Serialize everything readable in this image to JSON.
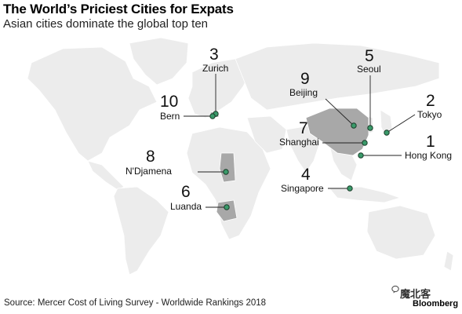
{
  "header": {
    "title": "The World’s Priciest Cities for Expats",
    "subtitle": "Asian cities dominate the global top ten"
  },
  "cities": [
    {
      "rank": "1",
      "name": "Hong Kong"
    },
    {
      "rank": "2",
      "name": "Tokyo"
    },
    {
      "rank": "3",
      "name": "Zurich"
    },
    {
      "rank": "4",
      "name": "Singapore"
    },
    {
      "rank": "5",
      "name": "Seoul"
    },
    {
      "rank": "6",
      "name": "Luanda"
    },
    {
      "rank": "7",
      "name": "Shanghai"
    },
    {
      "rank": "8",
      "name": "N'Djamena"
    },
    {
      "rank": "9",
      "name": "Beijing"
    },
    {
      "rank": "10",
      "name": "Bern"
    }
  ],
  "footer": {
    "source": "Source: Mercer Cost of Living Survey - Worldwide Rankings 2018",
    "watermark": "魔北客",
    "brand": "Bloomberg"
  },
  "colors": {
    "land": "#ececec",
    "highlight_country": "#a8a8a8",
    "marker": "#3a9a6a",
    "marker_stroke": "#1a3d2a",
    "leader_line": "#222222"
  }
}
